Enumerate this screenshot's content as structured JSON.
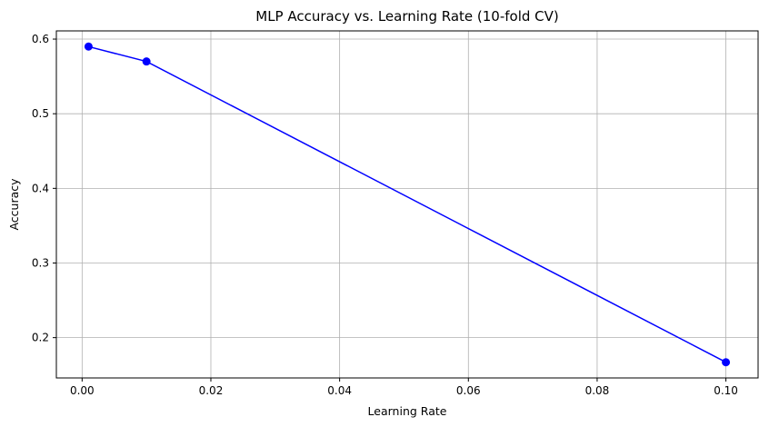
{
  "chart_data": {
    "type": "line",
    "title": "MLP Accuracy vs. Learning Rate (10-fold CV)",
    "xlabel": "Learning Rate",
    "ylabel": "Accuracy",
    "xlim": [
      -0.004,
      0.105
    ],
    "ylim": [
      0.146,
      0.611
    ],
    "xticks": [
      0.0,
      0.02,
      0.04,
      0.06,
      0.08,
      0.1
    ],
    "xtick_labels": [
      "0.00",
      "0.02",
      "0.04",
      "0.06",
      "0.08",
      "0.10"
    ],
    "yticks": [
      0.2,
      0.3,
      0.4,
      0.5,
      0.6
    ],
    "ytick_labels": [
      "0.2",
      "0.3",
      "0.4",
      "0.5",
      "0.6"
    ],
    "grid": true,
    "series": [
      {
        "x": [
          0.001,
          0.01,
          0.1
        ],
        "y": [
          0.59,
          0.57,
          0.167
        ],
        "color": "#0000ff",
        "marker": "circle"
      }
    ]
  }
}
